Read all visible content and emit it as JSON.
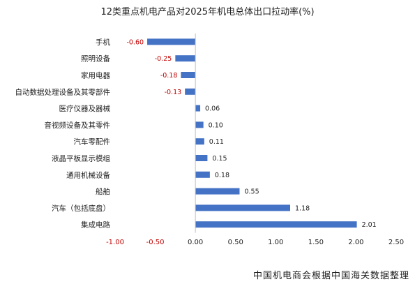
{
  "chart_data": {
    "type": "bar",
    "orientation": "horizontal",
    "title": "12类重点机电产品对2025年机电总体出口拉动率(%)",
    "source": "中国机电商会根据中国海关数据整理",
    "categories": [
      "手机",
      "照明设备",
      "家用电器",
      "自动数据处理设备及其零部件",
      "医疗仪器及器械",
      "音视频设备及其零件",
      "汽车零配件",
      "液晶平板显示模组",
      "通用机械设备",
      "船舶",
      "汽车（包括底盘）",
      "集成电路"
    ],
    "values": [
      -0.6,
      -0.25,
      -0.18,
      -0.13,
      0.06,
      0.1,
      0.11,
      0.15,
      0.18,
      0.55,
      1.18,
      2.01
    ],
    "value_labels": [
      "-0.60",
      "-0.25",
      "-0.18",
      "-0.13",
      "0.06",
      "0.10",
      "0.11",
      "0.15",
      "0.18",
      "0.55",
      "1.18",
      "2.01"
    ],
    "xlim": [
      -1.0,
      2.5
    ],
    "xticks": [
      -1.0,
      -0.5,
      0.0,
      0.5,
      1.0,
      1.5,
      2.0,
      2.5
    ],
    "xtick_labels": [
      "-1.00",
      "-0.50",
      "0.00",
      "0.50",
      "1.00",
      "1.50",
      "2.00",
      "2.50"
    ],
    "grid": false,
    "colors": {
      "bar": "#4472C4",
      "negative_text": "#C00000",
      "positive_text": "#222222"
    }
  }
}
